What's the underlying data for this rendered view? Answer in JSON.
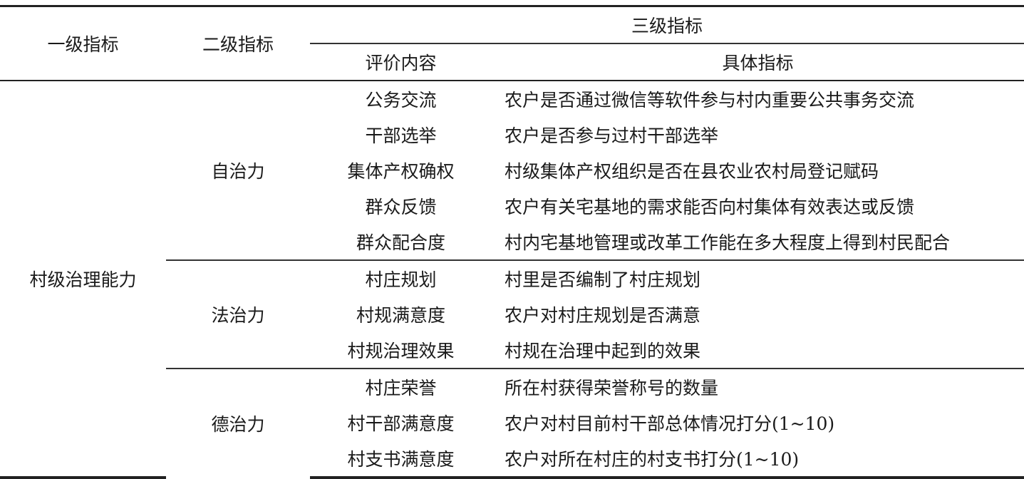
{
  "header": {
    "level1": "一级指标",
    "level2": "二级指标",
    "level3": "三级指标",
    "eval_content": "评价内容",
    "specific": "具体指标"
  },
  "level1_value": "村级治理能力",
  "groups": [
    {
      "name": "自治力",
      "rows": [
        {
          "content": "公务交流",
          "indicator": "农户是否通过微信等软件参与村内重要公共事务交流"
        },
        {
          "content": "干部选举",
          "indicator": "农户是否参与过村干部选举"
        },
        {
          "content": "集体产权确权",
          "indicator": "村级集体产权组织是否在县农业农村局登记赋码"
        },
        {
          "content": "群众反馈",
          "indicator": "农户有关宅基地的需求能否向村集体有效表达或反馈"
        },
        {
          "content": "群众配合度",
          "indicator": "村内宅基地管理或改革工作能在多大程度上得到村民配合"
        }
      ]
    },
    {
      "name": "法治力",
      "rows": [
        {
          "content": "村庄规划",
          "indicator": "村里是否编制了村庄规划"
        },
        {
          "content": "村规满意度",
          "indicator": "农户对村庄规划是否满意"
        },
        {
          "content": "村规治理效果",
          "indicator": "村规在治理中起到的效果"
        }
      ]
    },
    {
      "name": "德治力",
      "rows": [
        {
          "content": "村庄荣誉",
          "indicator": "所在村获得荣誉称号的数量"
        },
        {
          "content": "村干部满意度",
          "indicator": "农户对村目前村干部总体情况打分(1~10)"
        },
        {
          "content": "村支书满意度",
          "indicator": "农户对所在村庄的村支书打分(1~10)"
        }
      ]
    }
  ]
}
